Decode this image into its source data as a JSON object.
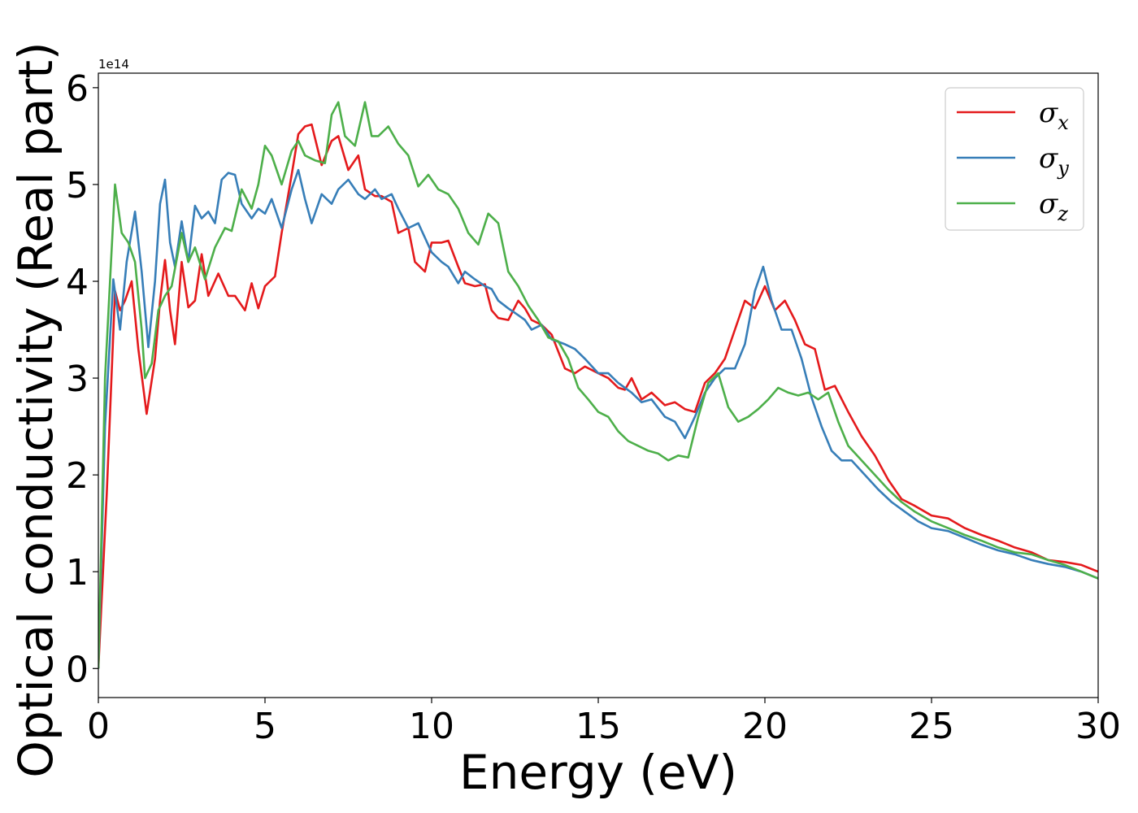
{
  "chart_data": {
    "type": "line",
    "xlabel": "Energy (eV)",
    "ylabel": "Optical conductivity (Real part)",
    "y_offset_label": "1e14",
    "xlim": [
      0,
      30
    ],
    "ylim": [
      -0.3,
      6.15
    ],
    "x_ticks": [
      "0",
      "5",
      "10",
      "15",
      "20",
      "25",
      "30"
    ],
    "y_ticks": [
      "0",
      "1",
      "2",
      "3",
      "4",
      "5",
      "6"
    ],
    "x_tick_values": [
      0,
      5,
      10,
      15,
      20,
      25,
      30
    ],
    "y_tick_values": [
      0,
      1,
      2,
      3,
      4,
      5,
      6
    ],
    "grid": false,
    "legend_position": "top-right",
    "series": [
      {
        "name": "σx",
        "legend_base": "σ",
        "legend_sub": "x",
        "color": "#e41a1c",
        "x": [
          0,
          0.25,
          0.5,
          0.65,
          0.8,
          1.0,
          1.2,
          1.45,
          1.7,
          1.85,
          2.0,
          2.15,
          2.3,
          2.5,
          2.7,
          2.9,
          3.1,
          3.3,
          3.6,
          3.9,
          4.1,
          4.4,
          4.6,
          4.8,
          5.0,
          5.3,
          5.5,
          5.8,
          6.0,
          6.2,
          6.4,
          6.7,
          7.0,
          7.2,
          7.5,
          7.8,
          8.0,
          8.3,
          8.5,
          8.8,
          9.0,
          9.3,
          9.5,
          9.8,
          10.0,
          10.3,
          10.5,
          10.8,
          11.0,
          11.3,
          11.6,
          11.8,
          12.0,
          12.3,
          12.6,
          12.8,
          13.0,
          13.3,
          13.6,
          14.0,
          14.3,
          14.6,
          15.0,
          15.3,
          15.6,
          15.8,
          16.0,
          16.3,
          16.6,
          17.0,
          17.3,
          17.6,
          17.9,
          18.2,
          18.5,
          18.8,
          19.1,
          19.4,
          19.7,
          20.0,
          20.3,
          20.6,
          20.9,
          21.2,
          21.5,
          21.8,
          22.1,
          22.5,
          22.9,
          23.3,
          23.7,
          24.1,
          24.5,
          25.0,
          25.5,
          26.0,
          26.5,
          27.0,
          27.5,
          28.0,
          28.5,
          29.0,
          29.5,
          30.0
        ],
        "y": [
          0.0,
          1.8,
          3.9,
          3.7,
          3.8,
          4.0,
          3.3,
          2.63,
          3.2,
          3.8,
          4.22,
          3.7,
          3.35,
          4.2,
          3.73,
          3.8,
          4.28,
          3.85,
          4.08,
          3.85,
          3.85,
          3.7,
          3.98,
          3.72,
          3.95,
          4.05,
          4.5,
          5.1,
          5.52,
          5.6,
          5.62,
          5.2,
          5.45,
          5.5,
          5.15,
          5.3,
          4.95,
          4.88,
          4.88,
          4.82,
          4.5,
          4.55,
          4.2,
          4.1,
          4.4,
          4.4,
          4.42,
          4.15,
          3.98,
          3.95,
          3.97,
          3.7,
          3.62,
          3.6,
          3.8,
          3.72,
          3.6,
          3.55,
          3.45,
          3.1,
          3.05,
          3.12,
          3.05,
          3.0,
          2.9,
          2.88,
          3.0,
          2.78,
          2.85,
          2.72,
          2.75,
          2.68,
          2.65,
          2.95,
          3.05,
          3.2,
          3.5,
          3.8,
          3.72,
          3.95,
          3.7,
          3.8,
          3.6,
          3.35,
          3.3,
          2.88,
          2.92,
          2.65,
          2.4,
          2.2,
          1.95,
          1.75,
          1.68,
          1.58,
          1.55,
          1.45,
          1.38,
          1.32,
          1.25,
          1.2,
          1.12,
          1.1,
          1.07,
          1.0
        ]
      },
      {
        "name": "σy",
        "legend_base": "σ",
        "legend_sub": "y",
        "color": "#377eb8",
        "x": [
          0,
          0.2,
          0.45,
          0.65,
          0.85,
          1.1,
          1.3,
          1.5,
          1.7,
          1.85,
          2.0,
          2.15,
          2.3,
          2.5,
          2.7,
          2.9,
          3.1,
          3.3,
          3.5,
          3.7,
          3.9,
          4.1,
          4.3,
          4.6,
          4.8,
          5.0,
          5.2,
          5.5,
          5.8,
          6.0,
          6.2,
          6.4,
          6.7,
          7.0,
          7.2,
          7.5,
          7.8,
          8.0,
          8.3,
          8.5,
          8.8,
          9.0,
          9.3,
          9.6,
          10.0,
          10.3,
          10.5,
          10.8,
          11.0,
          11.3,
          11.6,
          11.8,
          12.0,
          12.3,
          12.6,
          12.8,
          13.0,
          13.3,
          13.6,
          14.0,
          14.3,
          14.6,
          15.0,
          15.3,
          15.6,
          16.0,
          16.3,
          16.6,
          17.0,
          17.3,
          17.6,
          17.9,
          18.2,
          18.5,
          18.8,
          19.1,
          19.4,
          19.7,
          19.95,
          20.2,
          20.5,
          20.8,
          21.1,
          21.4,
          21.7,
          22.0,
          22.3,
          22.6,
          23.0,
          23.4,
          23.8,
          24.2,
          24.6,
          25.0,
          25.5,
          26.0,
          26.5,
          27.0,
          27.5,
          28.0,
          28.5,
          29.0,
          29.5,
          30.0
        ],
        "y": [
          0.0,
          2.5,
          4.02,
          3.5,
          4.2,
          4.72,
          4.1,
          3.32,
          4.0,
          4.8,
          5.05,
          4.4,
          4.15,
          4.62,
          4.2,
          4.78,
          4.65,
          4.72,
          4.6,
          5.05,
          5.12,
          5.1,
          4.8,
          4.65,
          4.75,
          4.7,
          4.85,
          4.55,
          4.95,
          5.15,
          4.85,
          4.6,
          4.9,
          4.8,
          4.95,
          5.05,
          4.9,
          4.85,
          4.95,
          4.85,
          4.9,
          4.75,
          4.55,
          4.6,
          4.3,
          4.2,
          4.15,
          3.98,
          4.1,
          4.02,
          3.95,
          3.92,
          3.8,
          3.72,
          3.65,
          3.6,
          3.5,
          3.55,
          3.4,
          3.35,
          3.3,
          3.2,
          3.05,
          3.05,
          2.95,
          2.85,
          2.75,
          2.78,
          2.6,
          2.55,
          2.38,
          2.6,
          2.85,
          3.0,
          3.1,
          3.1,
          3.35,
          3.9,
          4.15,
          3.8,
          3.5,
          3.5,
          3.2,
          2.8,
          2.5,
          2.25,
          2.15,
          2.15,
          2.0,
          1.85,
          1.72,
          1.62,
          1.52,
          1.45,
          1.42,
          1.35,
          1.28,
          1.22,
          1.18,
          1.12,
          1.08,
          1.05,
          1.0,
          0.93
        ]
      },
      {
        "name": "σz",
        "legend_base": "σ",
        "legend_sub": "z",
        "color": "#4daf4a",
        "x": [
          0,
          0.2,
          0.5,
          0.7,
          0.9,
          1.1,
          1.3,
          1.4,
          1.6,
          1.8,
          2.0,
          2.2,
          2.5,
          2.7,
          2.9,
          3.2,
          3.5,
          3.8,
          4.0,
          4.3,
          4.6,
          4.8,
          5.0,
          5.2,
          5.5,
          5.8,
          6.0,
          6.2,
          6.5,
          6.8,
          7.0,
          7.2,
          7.4,
          7.7,
          8.0,
          8.2,
          8.4,
          8.7,
          9.0,
          9.3,
          9.6,
          9.9,
          10.2,
          10.5,
          10.8,
          11.1,
          11.4,
          11.7,
          12.0,
          12.3,
          12.6,
          12.9,
          13.2,
          13.5,
          13.8,
          14.1,
          14.4,
          14.7,
          15.0,
          15.3,
          15.6,
          15.9,
          16.2,
          16.5,
          16.8,
          17.1,
          17.4,
          17.7,
          18.0,
          18.3,
          18.6,
          18.9,
          19.2,
          19.5,
          19.8,
          20.1,
          20.4,
          20.7,
          21.0,
          21.3,
          21.6,
          21.9,
          22.2,
          22.5,
          22.9,
          23.3,
          23.7,
          24.1,
          24.5,
          25.0,
          25.5,
          26.0,
          26.5,
          27.0,
          27.5,
          28.0,
          28.5,
          29.0,
          29.5,
          30.0
        ],
        "y": [
          0.0,
          3.0,
          5.0,
          4.5,
          4.4,
          4.2,
          3.5,
          3.0,
          3.15,
          3.7,
          3.85,
          3.95,
          4.5,
          4.2,
          4.35,
          4.02,
          4.35,
          4.55,
          4.52,
          4.95,
          4.75,
          5.0,
          5.4,
          5.3,
          5.0,
          5.35,
          5.45,
          5.3,
          5.25,
          5.22,
          5.72,
          5.85,
          5.5,
          5.4,
          5.85,
          5.5,
          5.5,
          5.6,
          5.42,
          5.3,
          4.98,
          5.1,
          4.95,
          4.9,
          4.75,
          4.5,
          4.38,
          4.7,
          4.6,
          4.1,
          3.95,
          3.75,
          3.6,
          3.42,
          3.38,
          3.2,
          2.9,
          2.78,
          2.65,
          2.6,
          2.45,
          2.35,
          2.3,
          2.25,
          2.22,
          2.15,
          2.2,
          2.18,
          2.6,
          2.95,
          3.05,
          2.7,
          2.55,
          2.6,
          2.68,
          2.78,
          2.9,
          2.85,
          2.82,
          2.85,
          2.78,
          2.85,
          2.55,
          2.3,
          2.15,
          2.0,
          1.85,
          1.72,
          1.62,
          1.52,
          1.45,
          1.38,
          1.32,
          1.25,
          1.2,
          1.18,
          1.12,
          1.07,
          1.0,
          0.93
        ]
      }
    ]
  }
}
